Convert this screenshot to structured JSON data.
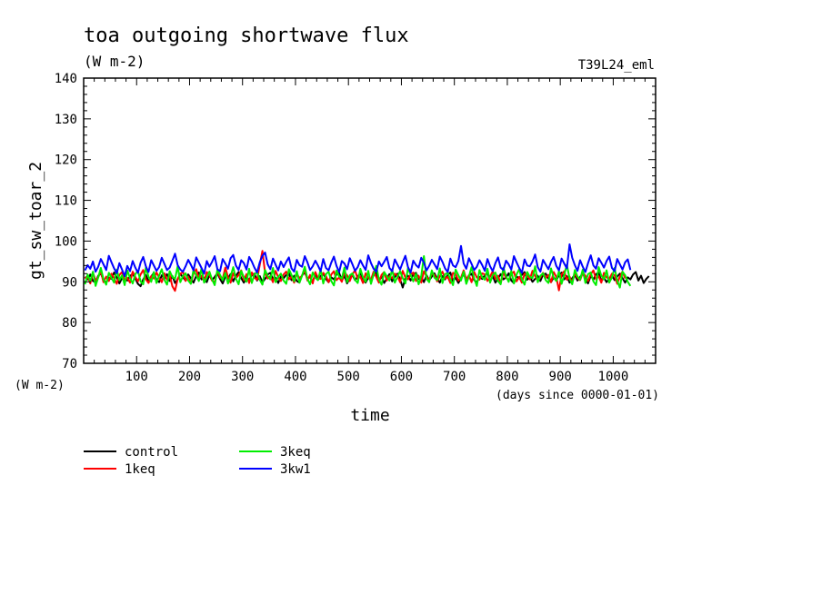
{
  "chart_data": {
    "type": "line",
    "title": "toa outgoing shortwave flux",
    "units": "(W m-2)",
    "experiment_label": "T39L24_eml",
    "ylabel": "gt_sw_toar_2",
    "yunits": "(W m-2)",
    "xlabel": "time",
    "xunits": "(days since 0000-01-01)",
    "xlim": [
      0,
      1080
    ],
    "ylim": [
      70,
      140
    ],
    "x_ticks": [
      100,
      200,
      300,
      400,
      500,
      600,
      700,
      800,
      900,
      1000
    ],
    "y_ticks": [
      70,
      80,
      90,
      100,
      110,
      120,
      130,
      140
    ],
    "x_step_days": 5,
    "series": [
      {
        "name": "control",
        "color": "#000000",
        "values": [
          91.2,
          90.6,
          91.8,
          90.2,
          89.9,
          91.5,
          92.1,
          90.4,
          89.8,
          91.0,
          90.7,
          92.3,
          91.1,
          89.6,
          90.9,
          91.8,
          90.3,
          91.4,
          92.0,
          90.8,
          89.5,
          88.9,
          90.6,
          91.7,
          90.1,
          91.3,
          92.2,
          90.5,
          89.9,
          91.6,
          90.8,
          91.9,
          90.2,
          91.4,
          89.7,
          90.6,
          92.0,
          91.1,
          90.3,
          91.8,
          90.9,
          89.8,
          91.5,
          92.3,
          90.6,
          91.0,
          89.9,
          91.7,
          90.4,
          91.2,
          92.1,
          90.7,
          89.6,
          91.3,
          90.8,
          91.9,
          90.1,
          91.5,
          92.4,
          90.9,
          89.8,
          91.1,
          90.5,
          91.6,
          92.0,
          90.3,
          91.4,
          89.9,
          90.7,
          91.8,
          92.2,
          90.6,
          91.0,
          89.7,
          91.3,
          90.9,
          91.7,
          92.1,
          90.4,
          91.5,
          90.2,
          89.8,
          91.6,
          92.3,
          90.8,
          91.2,
          90.0,
          91.9,
          90.5,
          91.4,
          92.0,
          90.7,
          89.9,
          91.1,
          90.6,
          91.8,
          92.2,
          90.3,
          91.5,
          89.6,
          90.9,
          91.7,
          90.4,
          91.3,
          92.1,
          90.8,
          89.8,
          91.0,
          90.5,
          91.6,
          92.4,
          90.2,
          91.4,
          89.7,
          90.8,
          91.9,
          90.1,
          91.2,
          92.0,
          90.6,
          88.6,
          90.9,
          91.5,
          90.3,
          91.8,
          92.2,
          90.7,
          91.1,
          89.9,
          91.6,
          90.4,
          91.3,
          92.1,
          90.8,
          89.8,
          91.4,
          90.6,
          91.7,
          92.3,
          90.2,
          91.0,
          89.7,
          90.9,
          91.8,
          90.5,
          91.5,
          92.0,
          90.4,
          89.9,
          91.2,
          90.7,
          91.6,
          92.2,
          90.1,
          91.4,
          89.8,
          90.8,
          91.9,
          90.6,
          91.1,
          92.1,
          90.3,
          89.7,
          91.3,
          90.9,
          91.7,
          92.4,
          90.5,
          91.2,
          90.0,
          90.7,
          91.5,
          90.2,
          91.8,
          92.0,
          90.8,
          89.9,
          91.1,
          90.4,
          91.6,
          92.3,
          90.6,
          91.4,
          89.8,
          90.9,
          91.7,
          90.3,
          91.2,
          92.1,
          90.7,
          89.6,
          91.5,
          90.5,
          91.9,
          92.2,
          90.2,
          91.0,
          89.9,
          90.8,
          91.6,
          90.4,
          91.3,
          92.0,
          90.9,
          89.8,
          91.1,
          90.6,
          91.8,
          92.4,
          90.3,
          91.5,
          89.7,
          90.7,
          91.4
        ]
      },
      {
        "name": "1keq",
        "color": "#ff0000",
        "values": [
          90.8,
          91.5,
          89.6,
          92.2,
          90.4,
          91.1,
          92.6,
          89.9,
          91.3,
          90.2,
          92.0,
          90.9,
          89.5,
          91.7,
          92.4,
          90.3,
          91.0,
          89.8,
          92.5,
          91.2,
          90.1,
          91.8,
          92.9,
          90.6,
          89.7,
          91.4,
          90.8,
          92.3,
          91.0,
          89.9,
          92.1,
          90.5,
          91.6,
          88.9,
          87.8,
          90.7,
          91.9,
          92.5,
          90.2,
          91.3,
          89.6,
          92.0,
          93.1,
          90.8,
          91.5,
          90.1,
          92.4,
          91.7,
          90.3,
          89.9,
          92.6,
          91.1,
          90.7,
          93.5,
          91.2,
          89.8,
          92.1,
          90.9,
          91.6,
          92.8,
          90.4,
          91.9,
          89.7,
          92.3,
          91.0,
          90.5,
          94.2,
          97.6,
          92.2,
          90.8,
          91.4,
          89.9,
          92.7,
          91.1,
          90.2,
          91.8,
          92.5,
          90.6,
          91.3,
          89.8,
          92.0,
          90.9,
          91.5,
          92.9,
          90.3,
          91.7,
          89.6,
          92.4,
          91.0,
          90.7,
          92.2,
          91.4,
          89.9,
          91.8,
          92.6,
          90.4,
          91.1,
          90.0,
          92.3,
          91.6,
          90.2,
          91.9,
          92.8,
          90.7,
          91.3,
          89.7,
          92.1,
          91.0,
          90.5,
          92.5,
          91.2,
          89.8,
          91.7,
          92.4,
          90.3,
          91.4,
          90.9,
          92.0,
          91.5,
          89.9,
          92.7,
          91.1,
          90.6,
          91.8,
          92.3,
          90.2,
          91.5,
          89.8,
          92.6,
          91.3,
          90.4,
          92.0,
          91.7,
          90.1,
          91.4,
          92.5,
          90.8,
          91.2,
          89.7,
          92.2,
          91.9,
          90.3,
          91.0,
          92.8,
          90.6,
          91.6,
          89.9,
          92.4,
          91.1,
          90.5,
          92.1,
          91.8,
          90.2,
          91.3,
          92.6,
          90.7,
          91.5,
          89.6,
          92.3,
          91.0,
          90.4,
          91.9,
          92.5,
          90.1,
          91.2,
          89.8,
          92.0,
          91.6,
          90.6,
          92.7,
          91.4,
          90.3,
          91.1,
          92.2,
          90.9,
          91.7,
          89.9,
          92.4,
          91.2,
          87.9,
          91.8,
          92.6,
          90.5,
          91.3,
          89.7,
          92.1,
          91.0,
          90.4,
          92.3,
          91.5,
          90.2,
          91.9,
          92.8,
          90.6,
          91.4,
          89.8,
          92.2,
          91.1,
          90.7,
          92.0,
          91.6,
          89.5,
          91.3,
          92.5,
          90.8
        ]
      },
      {
        "name": "3keq",
        "color": "#00ee00",
        "values": [
          89.4,
          91.8,
          90.2,
          92.5,
          89.0,
          91.1,
          93.4,
          90.6,
          89.3,
          92.2,
          91.0,
          89.8,
          93.0,
          90.4,
          91.6,
          89.2,
          92.8,
          90.9,
          89.6,
          91.9,
          92.7,
          90.1,
          89.4,
          93.5,
          91.3,
          90.0,
          92.4,
          89.7,
          91.5,
          93.1,
          90.5,
          89.3,
          92.6,
          91.2,
          90.7,
          93.8,
          89.9,
          91.4,
          92.1,
          90.3,
          89.5,
          92.9,
          91.6,
          90.2,
          93.3,
          89.8,
          91.0,
          92.5,
          90.6,
          89.2,
          93.0,
          91.7,
          90.4,
          92.2,
          89.6,
          91.3,
          93.6,
          90.8,
          89.4,
          92.7,
          91.1,
          90.0,
          93.2,
          89.7,
          91.8,
          92.4,
          90.5,
          89.3,
          92.9,
          91.4,
          90.6,
          93.4,
          89.9,
          91.2,
          92.0,
          90.3,
          89.5,
          93.1,
          91.7,
          90.1,
          92.6,
          89.8,
          91.5,
          93.7,
          90.7,
          89.4,
          92.3,
          91.0,
          90.4,
          93.0,
          89.6,
          91.9,
          92.5,
          90.2,
          89.1,
          92.8,
          91.3,
          90.8,
          93.5,
          89.9,
          91.6,
          92.1,
          90.5,
          89.7,
          93.2,
          91.1,
          90.0,
          92.7,
          89.5,
          91.8,
          93.9,
          90.6,
          89.3,
          92.4,
          91.4,
          90.3,
          93.1,
          89.8,
          91.2,
          92.6,
          90.9,
          89.6,
          93.4,
          91.7,
          90.1,
          92.0,
          89.4,
          91.5,
          96.3,
          90.7,
          89.9,
          92.8,
          91.0,
          90.4,
          93.3,
          89.7,
          91.9,
          92.2,
          90.6,
          89.2,
          93.0,
          91.6,
          90.3,
          92.5,
          89.5,
          91.3,
          93.6,
          90.8,
          89.0,
          92.9,
          91.1,
          90.5,
          93.2,
          89.8,
          91.7,
          92.3,
          90.2,
          89.4,
          93.5,
          91.4,
          90.0,
          92.7,
          89.6,
          91.8,
          93.1,
          90.6,
          89.3,
          92.4,
          91.2,
          90.9,
          93.8,
          89.9,
          91.5,
          92.1,
          90.4,
          89.7,
          93.3,
          91.0,
          90.2,
          92.6,
          89.5,
          91.7,
          94.2,
          90.8,
          89.4,
          92.9,
          91.3,
          90.5,
          93.0,
          89.7,
          91.9,
          92.3,
          90.1,
          89.2,
          93.6,
          91.5,
          90.6,
          92.8,
          89.8,
          91.1,
          93.4,
          90.3,
          88.6,
          92.5,
          91.6,
          90.0,
          89.0
        ]
      },
      {
        "name": "3kw1",
        "color": "#0000ff",
        "values": [
          92.8,
          94.1,
          93.2,
          95.0,
          92.5,
          93.7,
          95.6,
          94.3,
          92.9,
          96.4,
          94.8,
          93.3,
          92.1,
          94.6,
          93.0,
          91.4,
          93.9,
          92.6,
          95.1,
          93.5,
          92.2,
          94.7,
          96.1,
          93.8,
          92.4,
          95.3,
          94.0,
          92.7,
          93.6,
          95.9,
          94.4,
          92.9,
          93.5,
          95.2,
          96.9,
          94.1,
          93.0,
          92.5,
          93.8,
          95.4,
          94.2,
          92.8,
          96.0,
          94.7,
          93.4,
          92.0,
          95.1,
          93.7,
          94.9,
          96.3,
          93.1,
          92.6,
          95.6,
          94.5,
          93.2,
          95.8,
          96.6,
          94.0,
          92.9,
          95.3,
          94.6,
          93.0,
          96.1,
          95.0,
          93.5,
          92.3,
          94.8,
          96.4,
          97.2,
          94.3,
          93.1,
          95.7,
          94.2,
          92.8,
          95.0,
          93.6,
          94.9,
          96.0,
          93.3,
          92.5,
          95.4,
          94.1,
          93.7,
          96.3,
          94.8,
          92.9,
          93.8,
          95.2,
          94.0,
          92.6,
          95.6,
          93.4,
          92.8,
          94.7,
          96.2,
          93.9,
          92.4,
          95.1,
          94.5,
          93.1,
          95.8,
          94.3,
          92.7,
          93.6,
          95.3,
          94.0,
          92.9,
          96.5,
          94.6,
          93.2,
          92.5,
          95.0,
          93.8,
          94.9,
          96.1,
          93.4,
          92.6,
          95.5,
          94.2,
          93.0,
          94.8,
          96.4,
          93.6,
          92.3,
          95.2,
          94.1,
          93.5,
          95.9,
          94.7,
          92.8,
          93.9,
          95.4,
          94.3,
          93.1,
          96.2,
          94.9,
          93.3,
          92.4,
          95.7,
          94.0,
          93.6,
          95.1,
          98.8,
          94.5,
          93.2,
          95.8,
          94.4,
          92.9,
          93.7,
          95.3,
          94.1,
          92.7,
          95.6,
          93.8,
          92.6,
          94.6,
          96.0,
          93.5,
          92.9,
          95.2,
          94.3,
          93.0,
          96.3,
          94.8,
          93.4,
          92.2,
          95.5,
          94.0,
          93.8,
          95.0,
          96.7,
          93.6,
          92.5,
          95.4,
          94.2,
          93.1,
          94.9,
          96.1,
          93.9,
          92.8,
          95.7,
          94.5,
          93.3,
          99.2,
          95.9,
          94.1,
          92.7,
          95.3,
          93.7,
          92.4,
          94.6,
          96.5,
          94.0,
          93.2,
          95.8,
          94.7,
          93.5,
          95.1,
          96.2,
          93.4,
          92.6,
          95.6,
          94.3,
          93.0,
          94.8,
          95.5,
          92.9
        ]
      }
    ]
  }
}
